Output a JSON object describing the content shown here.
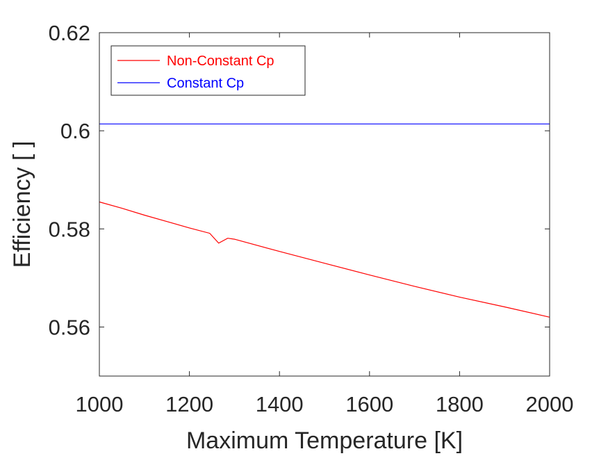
{
  "chart_data": {
    "type": "line",
    "xlabel": "Maximum Temperature [K]",
    "ylabel": "Efficiency [ ]",
    "xlim": [
      1000,
      2000
    ],
    "ylim": [
      0.55,
      0.62
    ],
    "xticks": [
      1000,
      1200,
      1400,
      1600,
      1800,
      2000
    ],
    "xtick_labels": [
      "1000",
      "1200",
      "1400",
      "1600",
      "1800",
      "2000"
    ],
    "yticks": [
      0.56,
      0.58,
      0.6,
      0.62
    ],
    "ytick_labels": [
      "0.56",
      "0.58",
      "0.6",
      "0.62"
    ],
    "grid": false,
    "legend_position": "top-left",
    "series": [
      {
        "name": "Non-Constant Cp",
        "color": "#ff0000",
        "x": [
          1000,
          1050,
          1100,
          1150,
          1200,
          1245,
          1265,
          1285,
          1300,
          1400,
          1500,
          1600,
          1700,
          1800,
          1900,
          2000
        ],
        "y": [
          0.5855,
          0.5842,
          0.5828,
          0.5815,
          0.5802,
          0.5791,
          0.5771,
          0.5781,
          0.5779,
          0.5754,
          0.573,
          0.5706,
          0.5683,
          0.5661,
          0.5641,
          0.562
        ]
      },
      {
        "name": "Constant Cp",
        "color": "#0000ff",
        "x": [
          1000,
          2000
        ],
        "y": [
          0.6014,
          0.6014
        ]
      }
    ]
  }
}
